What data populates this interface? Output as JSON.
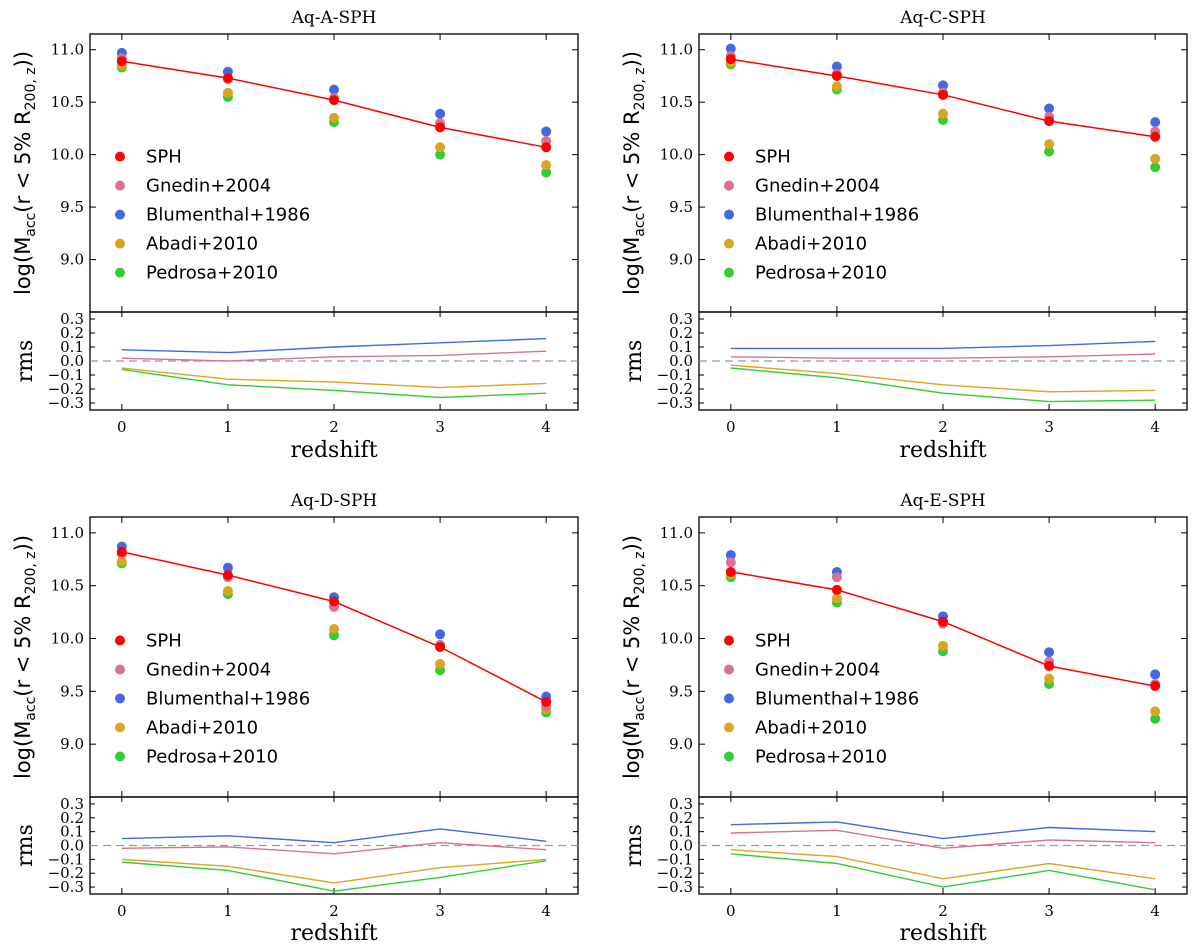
{
  "figure": {
    "colors": {
      "SPH": "#ff0000",
      "Gnedin+2004": "#db7093",
      "Blumenthal+1986": "#4169e1",
      "Abadi+2010": "#daa520",
      "Pedrosa+2010": "#32cd32",
      "reference": "#999999"
    }
  },
  "chart_data": [
    {
      "type": "scatter",
      "panel": "top",
      "title": "Aq-A-SPH",
      "ylabel": "log(M_acc(r < 5% R_200,z))",
      "ylabel_base": "log(M",
      "ylabel_sub": "acc",
      "ylabel_mid": "(r < 5% R",
      "ylabel_sub2": "200, z",
      "ylabel_end": "))",
      "xlabel": "redshift",
      "x": [
        0,
        1,
        2,
        3,
        4
      ],
      "xlim": [
        -0.3,
        4.3
      ],
      "ylim": [
        8.5,
        11.15
      ],
      "yticks": [
        "9.0",
        "9.5",
        "10.0",
        "10.5",
        "11.0"
      ],
      "xticks": [
        "0",
        "1",
        "2",
        "3",
        "4"
      ],
      "legend": [
        "SPH",
        "Gnedin+2004",
        "Blumenthal+1986",
        "Abadi+2010",
        "Pedrosa+2010"
      ],
      "series": [
        {
          "name": "SPH",
          "values": [
            10.89,
            10.73,
            10.52,
            10.26,
            10.07
          ],
          "line": true
        },
        {
          "name": "Gnedin+2004",
          "values": [
            10.92,
            10.72,
            10.54,
            10.3,
            10.13
          ]
        },
        {
          "name": "Blumenthal+1986",
          "values": [
            10.97,
            10.79,
            10.62,
            10.39,
            10.22
          ]
        },
        {
          "name": "Abadi+2010",
          "values": [
            10.85,
            10.59,
            10.35,
            10.07,
            9.9
          ]
        },
        {
          "name": "Pedrosa+2010",
          "values": [
            10.83,
            10.55,
            10.31,
            10.0,
            9.83
          ]
        }
      ],
      "rms": {
        "ylabel": "rms",
        "ylim": [
          -0.35,
          0.35
        ],
        "yticks": [
          "−0.3",
          "−0.2",
          "−0.1",
          "0.0",
          "0.1",
          "0.2",
          "0.3"
        ],
        "series": [
          {
            "name": "Gnedin+2004",
            "values": [
              0.02,
              0.0,
              0.03,
              0.04,
              0.07
            ]
          },
          {
            "name": "Blumenthal+1986",
            "values": [
              0.08,
              0.06,
              0.1,
              0.13,
              0.16
            ]
          },
          {
            "name": "Abadi+2010",
            "values": [
              -0.05,
              -0.13,
              -0.15,
              -0.19,
              -0.16
            ]
          },
          {
            "name": "Pedrosa+2010",
            "values": [
              -0.06,
              -0.17,
              -0.21,
              -0.26,
              -0.23
            ]
          }
        ]
      }
    },
    {
      "type": "scatter",
      "panel": "top",
      "title": "Aq-C-SPH",
      "ylabel": "log(M_acc(r < 5% R_200,z))",
      "ylabel_base": "log(M",
      "ylabel_sub": "acc",
      "ylabel_mid": "(r < 5% R",
      "ylabel_sub2": "200, z",
      "ylabel_end": "))",
      "xlabel": "redshift",
      "x": [
        0,
        1,
        2,
        3,
        4
      ],
      "xlim": [
        -0.3,
        4.3
      ],
      "ylim": [
        8.5,
        11.15
      ],
      "yticks": [
        "9.0",
        "9.5",
        "10.0",
        "10.5",
        "11.0"
      ],
      "xticks": [
        "0",
        "1",
        "2",
        "3",
        "4"
      ],
      "legend": [
        "SPH",
        "Gnedin+2004",
        "Blumenthal+1986",
        "Abadi+2010",
        "Pedrosa+2010"
      ],
      "series": [
        {
          "name": "SPH",
          "values": [
            10.91,
            10.75,
            10.57,
            10.32,
            10.17
          ],
          "line": true
        },
        {
          "name": "Gnedin+2004",
          "values": [
            10.94,
            10.77,
            10.59,
            10.36,
            10.22
          ]
        },
        {
          "name": "Blumenthal+1986",
          "values": [
            11.01,
            10.84,
            10.66,
            10.44,
            10.31
          ]
        },
        {
          "name": "Abadi+2010",
          "values": [
            10.88,
            10.65,
            10.39,
            10.1,
            9.96
          ]
        },
        {
          "name": "Pedrosa+2010",
          "values": [
            10.86,
            10.62,
            10.33,
            10.03,
            9.88
          ]
        }
      ],
      "rms": {
        "ylabel": "rms",
        "ylim": [
          -0.35,
          0.35
        ],
        "yticks": [
          "−0.3",
          "−0.2",
          "−0.1",
          "0.0",
          "0.1",
          "0.2",
          "0.3"
        ],
        "series": [
          {
            "name": "Gnedin+2004",
            "values": [
              0.03,
              0.02,
              0.02,
              0.03,
              0.05
            ]
          },
          {
            "name": "Blumenthal+1986",
            "values": [
              0.09,
              0.09,
              0.09,
              0.11,
              0.14
            ]
          },
          {
            "name": "Abadi+2010",
            "values": [
              -0.03,
              -0.09,
              -0.17,
              -0.22,
              -0.21
            ]
          },
          {
            "name": "Pedrosa+2010",
            "values": [
              -0.05,
              -0.12,
              -0.23,
              -0.29,
              -0.28
            ]
          }
        ]
      }
    },
    {
      "type": "scatter",
      "panel": "bottom",
      "title": "Aq-D-SPH",
      "ylabel": "log(M_acc(r < 5% R_200,z))",
      "ylabel_base": "log(M",
      "ylabel_sub": "acc",
      "ylabel_mid": "(r < 5% R",
      "ylabel_sub2": "200, z",
      "ylabel_end": "))",
      "xlabel": "redshift",
      "x": [
        0,
        1,
        2,
        3,
        4
      ],
      "xlim": [
        -0.3,
        4.3
      ],
      "ylim": [
        8.5,
        11.15
      ],
      "yticks": [
        "9.0",
        "9.5",
        "10.0",
        "10.5",
        "11.0"
      ],
      "xticks": [
        "0",
        "1",
        "2",
        "3",
        "4"
      ],
      "legend": [
        "SPH",
        "Gnedin+2004",
        "Blumenthal+1986",
        "Abadi+2010",
        "Pedrosa+2010"
      ],
      "series": [
        {
          "name": "SPH",
          "values": [
            10.82,
            10.6,
            10.35,
            9.92,
            9.4
          ],
          "line": true
        },
        {
          "name": "Gnedin+2004",
          "values": [
            10.8,
            10.58,
            10.3,
            9.94,
            9.36
          ]
        },
        {
          "name": "Blumenthal+1986",
          "values": [
            10.87,
            10.67,
            10.39,
            10.04,
            9.45
          ]
        },
        {
          "name": "Abadi+2010",
          "values": [
            10.73,
            10.45,
            10.09,
            9.76,
            9.33
          ]
        },
        {
          "name": "Pedrosa+2010",
          "values": [
            10.71,
            10.42,
            10.03,
            9.7,
            9.3
          ]
        }
      ],
      "rms": {
        "ylabel": "rms",
        "ylim": [
          -0.35,
          0.35
        ],
        "yticks": [
          "−0.3",
          "−0.2",
          "−0.1",
          "0.0",
          "0.1",
          "0.2",
          "0.3"
        ],
        "series": [
          {
            "name": "Gnedin+2004",
            "values": [
              -0.02,
              -0.01,
              -0.06,
              0.02,
              -0.03
            ]
          },
          {
            "name": "Blumenthal+1986",
            "values": [
              0.05,
              0.07,
              0.02,
              0.12,
              0.03
            ]
          },
          {
            "name": "Abadi+2010",
            "values": [
              -0.1,
              -0.15,
              -0.27,
              -0.16,
              -0.1
            ]
          },
          {
            "name": "Pedrosa+2010",
            "values": [
              -0.12,
              -0.18,
              -0.33,
              -0.23,
              -0.11
            ]
          }
        ]
      }
    },
    {
      "type": "scatter",
      "panel": "bottom",
      "title": "Aq-E-SPH",
      "ylabel": "log(M_acc(r < 5% R_200,z))",
      "ylabel_base": "log(M",
      "ylabel_sub": "acc",
      "ylabel_mid": "(r < 5% R",
      "ylabel_sub2": "200, z",
      "ylabel_end": "))",
      "xlabel": "redshift",
      "x": [
        0,
        1,
        2,
        3,
        4
      ],
      "xlim": [
        -0.3,
        4.3
      ],
      "ylim": [
        8.5,
        11.15
      ],
      "yticks": [
        "9.0",
        "9.5",
        "10.0",
        "10.5",
        "11.0"
      ],
      "xticks": [
        "0",
        "1",
        "2",
        "3",
        "4"
      ],
      "legend": [
        "SPH",
        "Gnedin+2004",
        "Blumenthal+1986",
        "Abadi+2010",
        "Pedrosa+2010"
      ],
      "series": [
        {
          "name": "SPH",
          "values": [
            10.63,
            10.46,
            10.16,
            9.74,
            9.55
          ],
          "line": true
        },
        {
          "name": "Gnedin+2004",
          "values": [
            10.72,
            10.58,
            10.14,
            9.78,
            9.57
          ]
        },
        {
          "name": "Blumenthal+1986",
          "values": [
            10.79,
            10.63,
            10.21,
            9.87,
            9.66
          ]
        },
        {
          "name": "Abadi+2010",
          "values": [
            10.61,
            10.38,
            9.93,
            9.62,
            9.31
          ]
        },
        {
          "name": "Pedrosa+2010",
          "values": [
            10.58,
            10.34,
            9.88,
            9.57,
            9.24
          ]
        }
      ],
      "rms": {
        "ylabel": "rms",
        "ylim": [
          -0.35,
          0.35
        ],
        "yticks": [
          "−0.3",
          "−0.2",
          "−0.1",
          "0.0",
          "0.1",
          "0.2",
          "0.3"
        ],
        "series": [
          {
            "name": "Gnedin+2004",
            "values": [
              0.09,
              0.11,
              -0.02,
              0.04,
              0.02
            ]
          },
          {
            "name": "Blumenthal+1986",
            "values": [
              0.15,
              0.17,
              0.05,
              0.13,
              0.1
            ]
          },
          {
            "name": "Abadi+2010",
            "values": [
              -0.03,
              -0.08,
              -0.24,
              -0.13,
              -0.24
            ]
          },
          {
            "name": "Pedrosa+2010",
            "values": [
              -0.06,
              -0.13,
              -0.3,
              -0.18,
              -0.32
            ]
          }
        ]
      }
    }
  ]
}
